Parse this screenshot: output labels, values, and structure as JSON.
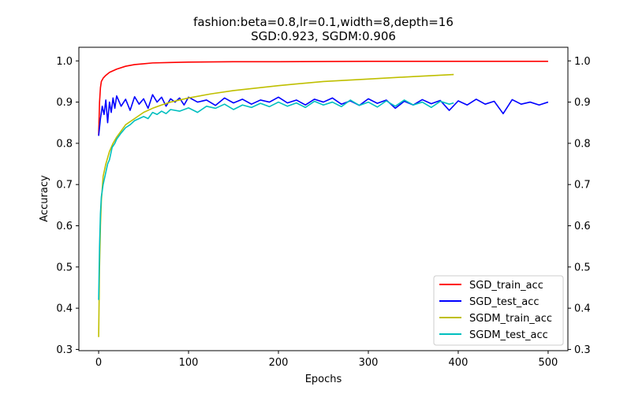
{
  "chart_data": {
    "type": "line",
    "title": "fashion:beta=0.8,lr=0.1,width=8,depth=16",
    "subtitle": "SGD:0.923, SGDM:0.906",
    "xlabel": "Epochs",
    "ylabel": "Accuracy",
    "xlim": [
      -22,
      522
    ],
    "ylim": [
      0.297,
      1.033
    ],
    "x_ticks": [
      0,
      100,
      200,
      300,
      400,
      500
    ],
    "y_ticks": [
      0.3,
      0.4,
      0.5,
      0.6,
      0.7,
      0.8,
      0.9,
      1.0
    ],
    "y_ticks_right": [
      0.3,
      0.4,
      0.5,
      0.6,
      0.7,
      0.8,
      0.9,
      1.0
    ],
    "grid": false,
    "legend_position": "lower-right",
    "series": [
      {
        "name": "SGD_train_acc",
        "color": "#ff0000",
        "x": [
          0,
          1,
          2,
          3,
          5,
          8,
          12,
          20,
          30,
          40,
          50,
          60,
          80,
          100,
          150,
          200,
          300,
          400,
          500
        ],
        "values": [
          0.82,
          0.9,
          0.935,
          0.95,
          0.958,
          0.965,
          0.972,
          0.98,
          0.987,
          0.991,
          0.993,
          0.995,
          0.996,
          0.997,
          0.998,
          0.998,
          0.999,
          0.999,
          0.999
        ]
      },
      {
        "name": "SGD_test_acc",
        "color": "#0000ff",
        "x": [
          0,
          2,
          4,
          6,
          8,
          10,
          12,
          14,
          16,
          18,
          20,
          25,
          30,
          35,
          40,
          45,
          50,
          55,
          60,
          65,
          70,
          75,
          80,
          85,
          90,
          95,
          100,
          110,
          120,
          130,
          140,
          150,
          160,
          170,
          180,
          190,
          200,
          210,
          220,
          230,
          240,
          250,
          260,
          270,
          280,
          290,
          300,
          310,
          320,
          330,
          340,
          350,
          360,
          370,
          380,
          390,
          400,
          410,
          420,
          430,
          440,
          450,
          460,
          470,
          480,
          490,
          500
        ],
        "values": [
          0.818,
          0.86,
          0.89,
          0.87,
          0.905,
          0.85,
          0.9,
          0.875,
          0.91,
          0.885,
          0.915,
          0.89,
          0.907,
          0.88,
          0.913,
          0.895,
          0.908,
          0.885,
          0.918,
          0.9,
          0.912,
          0.89,
          0.908,
          0.9,
          0.91,
          0.893,
          0.912,
          0.9,
          0.905,
          0.892,
          0.91,
          0.898,
          0.907,
          0.895,
          0.905,
          0.9,
          0.912,
          0.898,
          0.905,
          0.893,
          0.907,
          0.9,
          0.91,
          0.895,
          0.903,
          0.892,
          0.908,
          0.897,
          0.905,
          0.885,
          0.902,
          0.893,
          0.906,
          0.896,
          0.904,
          0.88,
          0.903,
          0.893,
          0.907,
          0.895,
          0.902,
          0.872,
          0.906,
          0.895,
          0.9,
          0.893,
          0.9
        ]
      },
      {
        "name": "SGDM_train_acc",
        "color": "#bfbf00",
        "x": [
          0,
          1,
          2,
          3,
          5,
          8,
          12,
          16,
          20,
          25,
          30,
          40,
          50,
          60,
          70,
          80,
          100,
          125,
          150,
          200,
          250,
          300,
          350,
          395
        ],
        "values": [
          0.33,
          0.5,
          0.6,
          0.66,
          0.72,
          0.75,
          0.78,
          0.8,
          0.815,
          0.83,
          0.845,
          0.86,
          0.875,
          0.885,
          0.893,
          0.9,
          0.91,
          0.92,
          0.928,
          0.94,
          0.95,
          0.956,
          0.962,
          0.967
        ]
      },
      {
        "name": "SGDM_test_acc",
        "color": "#00bfbf",
        "x": [
          0,
          1,
          2,
          3,
          5,
          8,
          10,
          12,
          15,
          18,
          20,
          25,
          30,
          35,
          40,
          45,
          50,
          55,
          60,
          65,
          70,
          75,
          80,
          90,
          100,
          110,
          120,
          130,
          140,
          150,
          160,
          170,
          180,
          190,
          200,
          210,
          220,
          230,
          240,
          250,
          260,
          270,
          280,
          290,
          300,
          310,
          320,
          330,
          340,
          350,
          360,
          370,
          380,
          390,
          395
        ],
        "values": [
          0.42,
          0.55,
          0.63,
          0.67,
          0.7,
          0.73,
          0.75,
          0.76,
          0.79,
          0.8,
          0.81,
          0.825,
          0.838,
          0.845,
          0.855,
          0.86,
          0.865,
          0.86,
          0.875,
          0.87,
          0.878,
          0.872,
          0.882,
          0.878,
          0.886,
          0.875,
          0.89,
          0.885,
          0.895,
          0.882,
          0.893,
          0.887,
          0.897,
          0.889,
          0.9,
          0.89,
          0.898,
          0.887,
          0.902,
          0.893,
          0.9,
          0.889,
          0.905,
          0.892,
          0.9,
          0.888,
          0.903,
          0.89,
          0.905,
          0.893,
          0.9,
          0.887,
          0.902,
          0.895,
          0.898
        ]
      }
    ]
  }
}
